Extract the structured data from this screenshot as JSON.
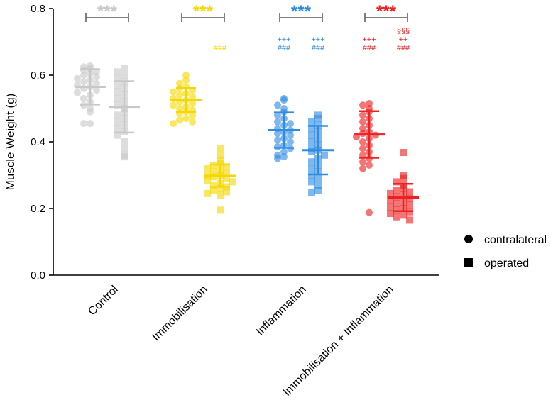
{
  "chart_data": {
    "type": "scatter",
    "ylabel": "Muscle Weight (g)",
    "xlabel": "",
    "ylim": [
      0.0,
      0.8
    ],
    "yticks": [
      "0.0",
      "0.2",
      "0.4",
      "0.6",
      "0.8"
    ],
    "yticks_values": [
      0.0,
      0.2,
      0.4,
      0.6,
      0.8
    ],
    "categories": [
      "Control",
      "Immobilisation",
      "Inflammation",
      "Immobilisation + Inflammation"
    ],
    "legend": [
      {
        "marker": "circle",
        "label": "contralateral"
      },
      {
        "marker": "square",
        "label": "operated"
      }
    ],
    "groups": [
      {
        "category": "Control",
        "color": "#c8c8c8",
        "stars": "***",
        "contralateral": {
          "mean": 0.565,
          "sd_low": 0.512,
          "sd_high": 0.618,
          "points": [
            0.628,
            0.625,
            0.62,
            0.615,
            0.61,
            0.605,
            0.6,
            0.595,
            0.59,
            0.585,
            0.58,
            0.575,
            0.57,
            0.565,
            0.56,
            0.555,
            0.548,
            0.54,
            0.53,
            0.52,
            0.51,
            0.5,
            0.49,
            0.455,
            0.455
          ]
        },
        "operated": {
          "mean": 0.505,
          "sd_low": 0.428,
          "sd_high": 0.582,
          "points": [
            0.62,
            0.61,
            0.6,
            0.59,
            0.58,
            0.57,
            0.56,
            0.55,
            0.54,
            0.53,
            0.52,
            0.51,
            0.5,
            0.49,
            0.48,
            0.47,
            0.46,
            0.45,
            0.44,
            0.43,
            0.42,
            0.4,
            0.38,
            0.36,
            0.355
          ]
        },
        "operated_labels": []
      },
      {
        "category": "Immobilisation",
        "color": "#f5d800",
        "stars": "***",
        "contralateral": {
          "mean": 0.525,
          "sd_low": 0.49,
          "sd_high": 0.562,
          "points": [
            0.6,
            0.585,
            0.575,
            0.565,
            0.56,
            0.555,
            0.55,
            0.545,
            0.54,
            0.535,
            0.53,
            0.525,
            0.52,
            0.515,
            0.51,
            0.505,
            0.5,
            0.495,
            0.49,
            0.485,
            0.48,
            0.47,
            0.465,
            0.46,
            0.455
          ]
        },
        "operated": {
          "mean": 0.298,
          "sd_low": 0.265,
          "sd_high": 0.332,
          "points": [
            0.38,
            0.36,
            0.345,
            0.335,
            0.33,
            0.325,
            0.32,
            0.315,
            0.31,
            0.305,
            0.3,
            0.298,
            0.295,
            0.29,
            0.285,
            0.28,
            0.275,
            0.27,
            0.265,
            0.26,
            0.255,
            0.25,
            0.245,
            0.24,
            0.195
          ]
        },
        "operated_labels": [
          "###"
        ]
      },
      {
        "category": "Inflammation",
        "color": "#2e8de3",
        "stars": "***",
        "contralateral": {
          "mean": 0.435,
          "sd_low": 0.382,
          "sd_high": 0.488,
          "points": [
            0.53,
            0.525,
            0.51,
            0.5,
            0.49,
            0.48,
            0.47,
            0.46,
            0.455,
            0.45,
            0.44,
            0.435,
            0.43,
            0.425,
            0.42,
            0.41,
            0.405,
            0.4,
            0.39,
            0.385,
            0.38,
            0.37,
            0.36,
            0.355,
            0.35
          ]
        },
        "operated": {
          "mean": 0.375,
          "sd_low": 0.302,
          "sd_high": 0.448,
          "points": [
            0.48,
            0.47,
            0.46,
            0.45,
            0.44,
            0.43,
            0.42,
            0.41,
            0.4,
            0.39,
            0.38,
            0.375,
            0.37,
            0.36,
            0.35,
            0.34,
            0.33,
            0.32,
            0.31,
            0.3,
            0.29,
            0.28,
            0.27,
            0.255,
            0.248
          ]
        },
        "contralateral_labels": [
          "+++",
          "###"
        ],
        "operated_labels": [
          "+++",
          "###"
        ]
      },
      {
        "category": "Immobilisation + Inflammation",
        "color": "#ee2020",
        "stars": "***",
        "contralateral": {
          "mean": 0.422,
          "sd_low": 0.352,
          "sd_high": 0.492,
          "points": [
            0.515,
            0.51,
            0.5,
            0.49,
            0.48,
            0.47,
            0.46,
            0.45,
            0.44,
            0.43,
            0.425,
            0.42,
            0.415,
            0.41,
            0.4,
            0.39,
            0.38,
            0.37,
            0.36,
            0.35,
            0.34,
            0.33,
            0.32,
            0.188
          ]
        },
        "operated": {
          "mean": 0.233,
          "sd_low": 0.192,
          "sd_high": 0.274,
          "points": [
            0.368,
            0.3,
            0.29,
            0.28,
            0.27,
            0.26,
            0.255,
            0.25,
            0.245,
            0.24,
            0.235,
            0.23,
            0.225,
            0.22,
            0.215,
            0.21,
            0.205,
            0.2,
            0.195,
            0.19,
            0.185,
            0.18,
            0.175,
            0.165
          ]
        },
        "contralateral_labels": [
          "+++",
          "###"
        ],
        "operated_labels": [
          "§§§",
          "++",
          "###"
        ]
      }
    ]
  }
}
